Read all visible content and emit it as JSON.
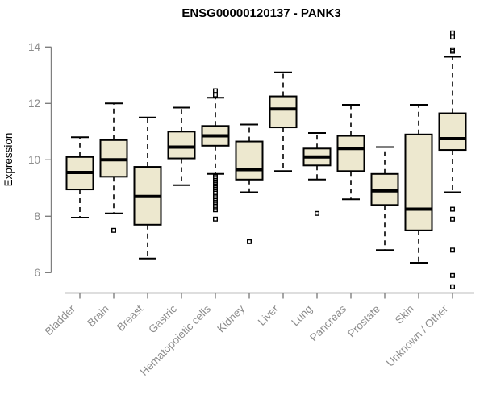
{
  "chart_data": {
    "type": "boxplot",
    "title": "ENSG00000120137 - PANK3",
    "xlabel": "",
    "ylabel": "Expression",
    "yticks": [
      6,
      8,
      10,
      12,
      14
    ],
    "ylim": [
      5.2,
      14.7
    ],
    "grid": false,
    "legend": "none",
    "categories": [
      "Bladder",
      "Brain",
      "Breast",
      "Gastric",
      "Hematopoietic cells",
      "Kidney",
      "Liver",
      "Lung",
      "Pancreas",
      "Prostate",
      "Skin",
      "Unknown / Other"
    ],
    "boxes": [
      {
        "category": "Bladder",
        "whisker_low": 7.95,
        "q1": 8.95,
        "median": 9.55,
        "q3": 10.1,
        "whisker_high": 10.8,
        "outliers": []
      },
      {
        "category": "Brain",
        "whisker_low": 8.1,
        "q1": 9.4,
        "median": 10.0,
        "q3": 10.7,
        "whisker_high": 12.0,
        "outliers": [
          7.5
        ]
      },
      {
        "category": "Breast",
        "whisker_low": 6.5,
        "q1": 7.7,
        "median": 8.7,
        "q3": 9.75,
        "whisker_high": 11.5,
        "outliers": []
      },
      {
        "category": "Gastric",
        "whisker_low": 9.1,
        "q1": 10.05,
        "median": 10.45,
        "q3": 11.0,
        "whisker_high": 11.85,
        "outliers": []
      },
      {
        "category": "Hematopoietic cells",
        "whisker_low": 9.5,
        "q1": 10.5,
        "median": 10.85,
        "q3": 11.2,
        "whisker_high": 12.2,
        "outliers": [
          12.45,
          12.3,
          9.4,
          9.34,
          9.27,
          9.21,
          9.14,
          9.08,
          9.01,
          8.95,
          8.88,
          8.82,
          8.75,
          8.69,
          8.62,
          8.56,
          8.49,
          8.43,
          8.36,
          8.3,
          8.23,
          7.9
        ]
      },
      {
        "category": "Kidney",
        "whisker_low": 8.85,
        "q1": 9.3,
        "median": 9.65,
        "q3": 10.65,
        "whisker_high": 11.25,
        "outliers": [
          7.1
        ]
      },
      {
        "category": "Liver",
        "whisker_low": 9.6,
        "q1": 11.15,
        "median": 11.8,
        "q3": 12.25,
        "whisker_high": 13.1,
        "outliers": []
      },
      {
        "category": "Lung",
        "whisker_low": 9.3,
        "q1": 9.8,
        "median": 10.1,
        "q3": 10.4,
        "whisker_high": 10.95,
        "outliers": [
          8.1
        ]
      },
      {
        "category": "Pancreas",
        "whisker_low": 8.6,
        "q1": 9.6,
        "median": 10.4,
        "q3": 10.85,
        "whisker_high": 11.95,
        "outliers": []
      },
      {
        "category": "Prostate",
        "whisker_low": 6.8,
        "q1": 8.4,
        "median": 8.9,
        "q3": 9.5,
        "whisker_high": 10.45,
        "outliers": []
      },
      {
        "category": "Skin",
        "whisker_low": 6.35,
        "q1": 7.5,
        "median": 8.25,
        "q3": 10.9,
        "whisker_high": 11.95,
        "outliers": []
      },
      {
        "category": "Unknown / Other",
        "whisker_low": 8.85,
        "q1": 10.35,
        "median": 10.75,
        "q3": 11.65,
        "whisker_high": 13.65,
        "outliers": [
          14.5,
          14.35,
          13.9,
          13.85,
          8.25,
          7.9,
          6.8,
          5.9,
          5.5
        ]
      }
    ],
    "colors": {
      "box_fill": "#EDE8CF",
      "box_border": "#000000",
      "median": "#000000",
      "whisker": "#000000",
      "axis": "#7f7f7f",
      "tick_text": "#8c8c8c",
      "title_text": "#000000"
    }
  }
}
